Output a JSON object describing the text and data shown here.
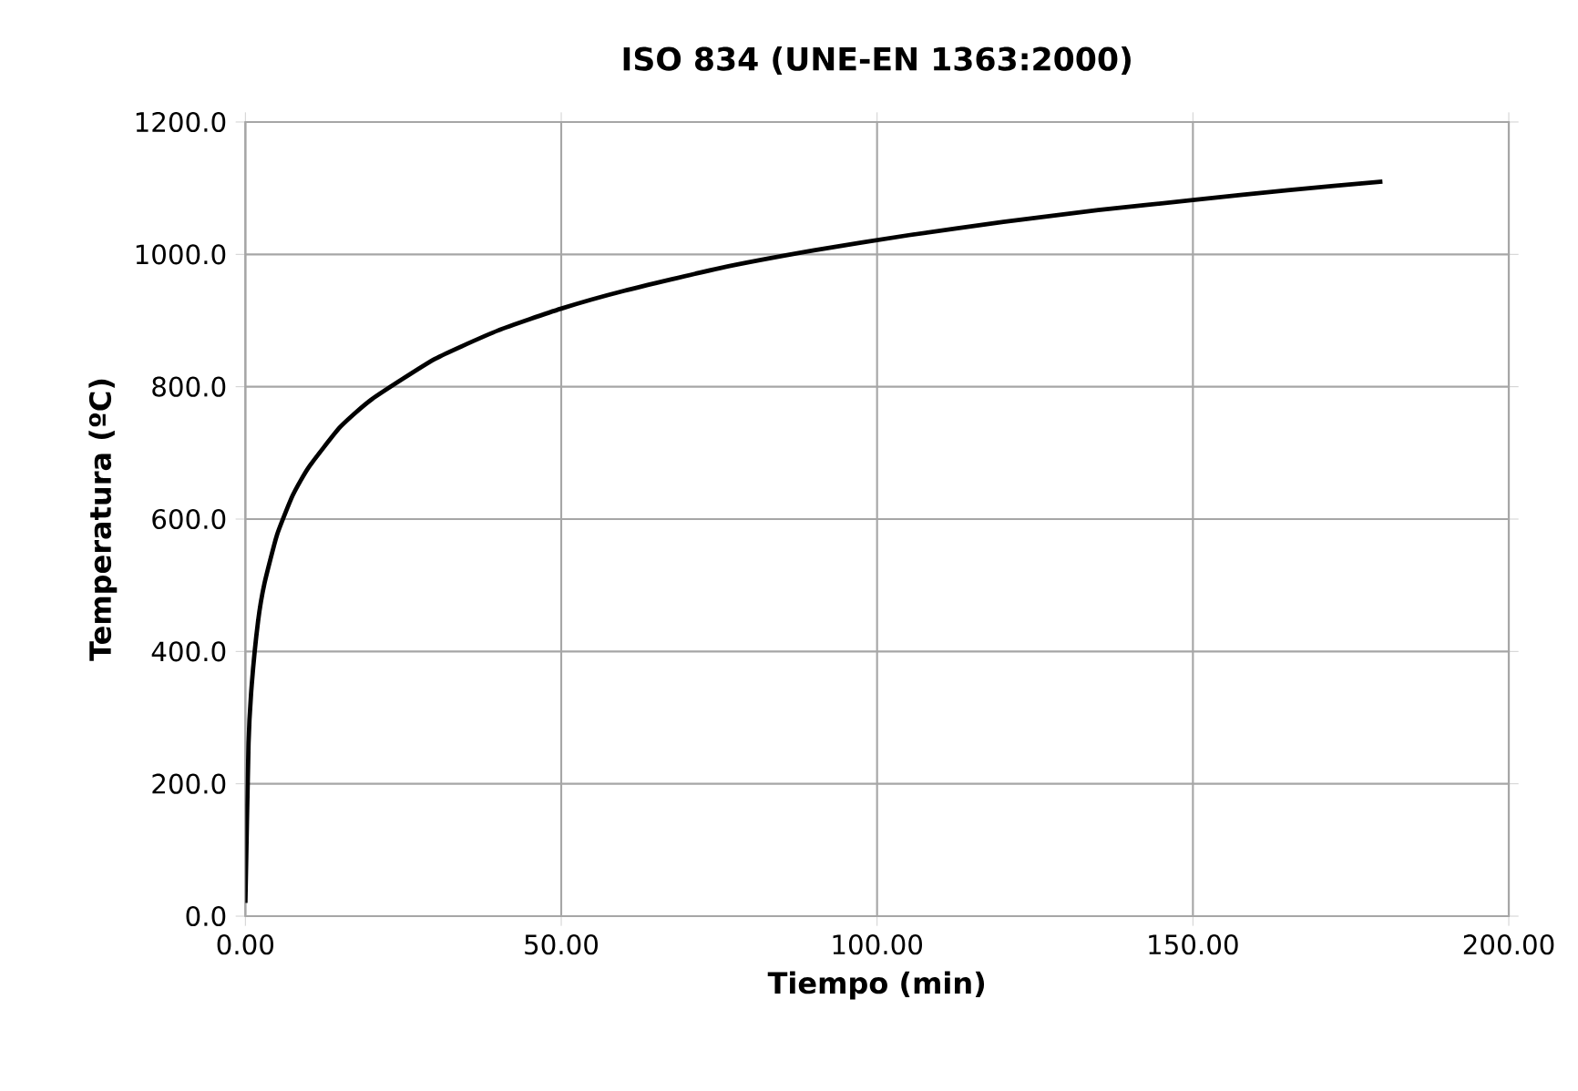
{
  "chart_data": {
    "type": "line",
    "title": "ISO 834 (UNE-EN 1363:2000)",
    "xlabel": "Tiempo (min)",
    "ylabel": "Temperatura (ºC)",
    "x": [
      0,
      0.5,
      1,
      2,
      3,
      5,
      7.5,
      10,
      15,
      20,
      30,
      40,
      50,
      60,
      75,
      90,
      105,
      120,
      135,
      150,
      165,
      180
    ],
    "series": [
      {
        "color": "#000000",
        "values": [
          20,
          261,
          349,
          445,
          502,
          576,
          636,
          678,
          739,
          781,
          842,
          885,
          918,
          945,
          979,
          1006,
          1029,
          1049,
          1067,
          1082,
          1097,
          1110
        ]
      }
    ],
    "xlim": [
      0,
      200
    ],
    "ylim": [
      0,
      1200
    ],
    "xticks": [
      {
        "value": 0,
        "label": "0.00"
      },
      {
        "value": 50,
        "label": "50.00"
      },
      {
        "value": 100,
        "label": "100.00"
      },
      {
        "value": 150,
        "label": "150.00"
      },
      {
        "value": 200,
        "label": "200.00"
      }
    ],
    "yticks": [
      {
        "value": 0,
        "label": "0.0"
      },
      {
        "value": 200,
        "label": "200.0"
      },
      {
        "value": 400,
        "label": "400.0"
      },
      {
        "value": 600,
        "label": "600.0"
      },
      {
        "value": 800,
        "label": "800.0"
      },
      {
        "value": 1000,
        "label": "1000.0"
      },
      {
        "value": 1200,
        "label": "1200.0"
      }
    ],
    "grid": true,
    "marker": "none",
    "line_style": "solid"
  }
}
